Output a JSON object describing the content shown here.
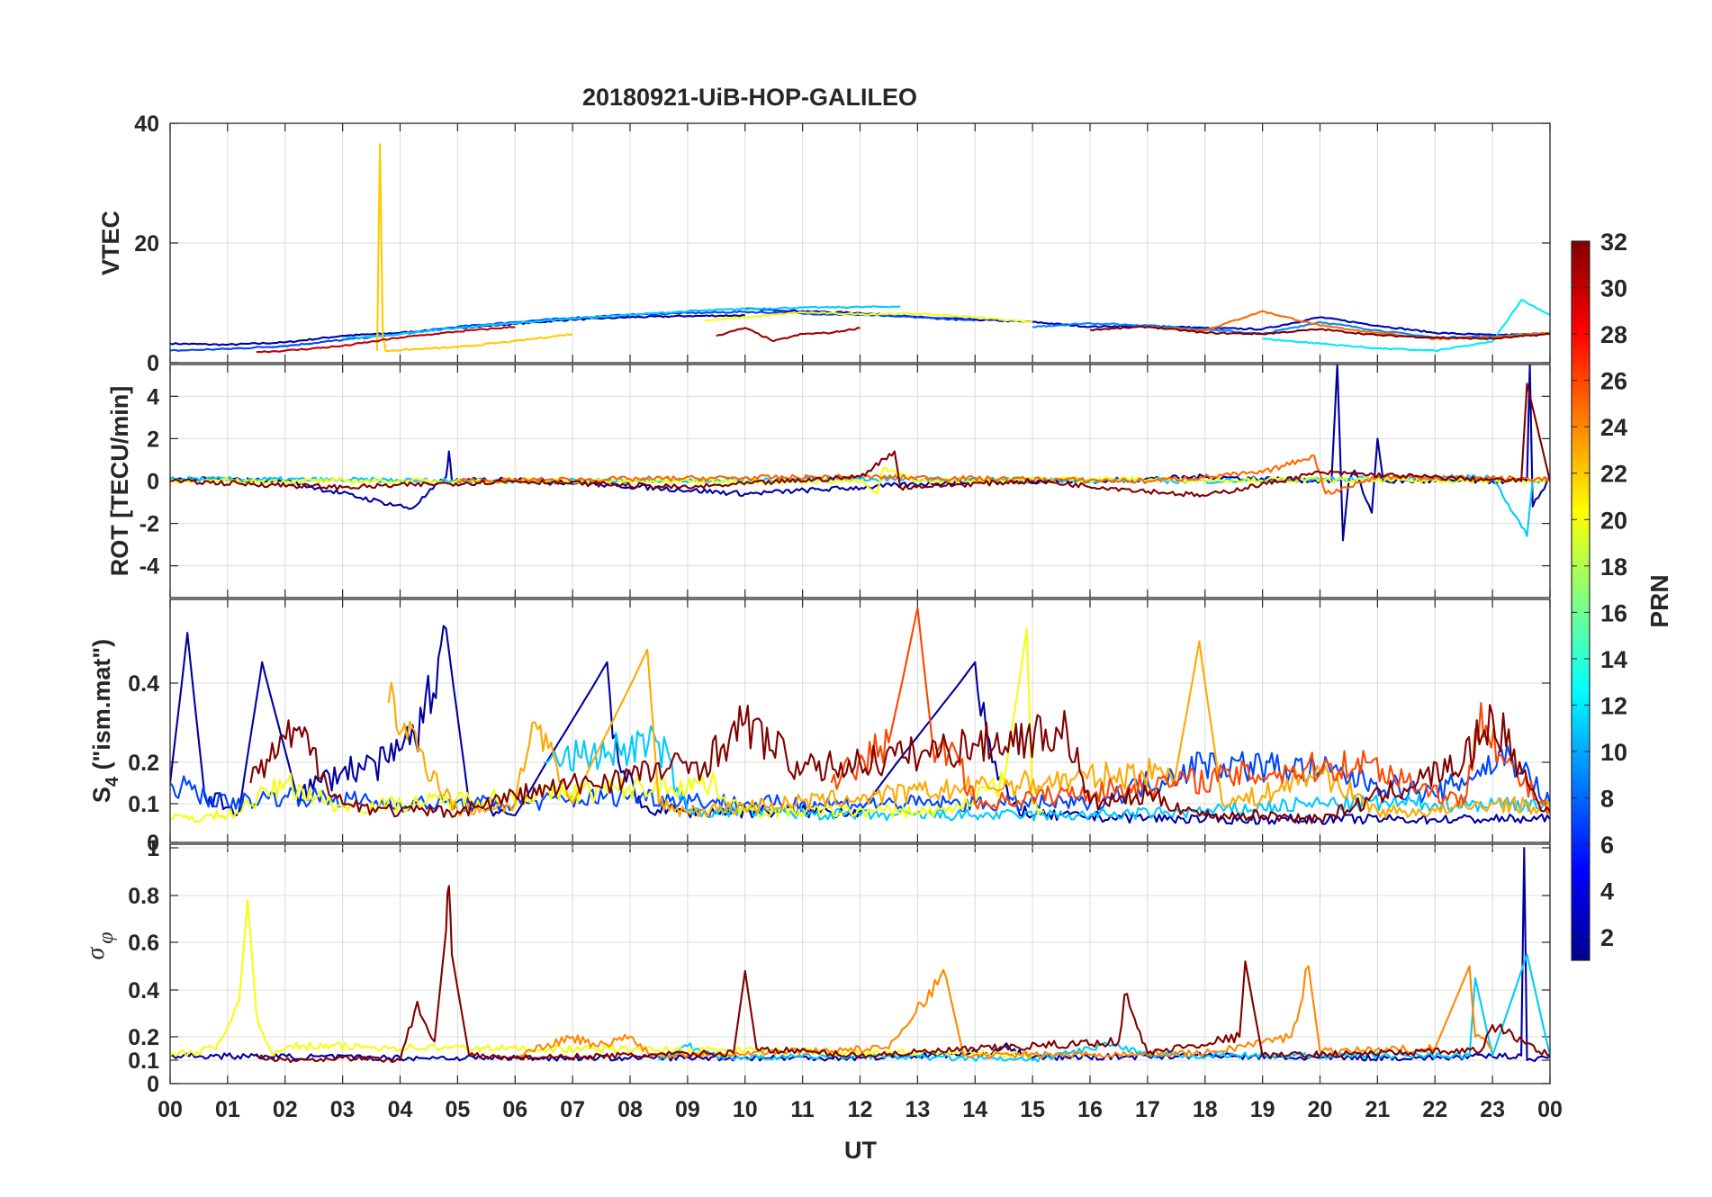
{
  "chart_data": {
    "type": "line",
    "title": "20180921-UiB-HOP-GALILEO",
    "xlabel": "UT",
    "x_range": [
      0,
      24
    ],
    "x_tick_labels": [
      "00",
      "01",
      "02",
      "03",
      "04",
      "05",
      "06",
      "07",
      "08",
      "09",
      "10",
      "11",
      "12",
      "13",
      "14",
      "15",
      "16",
      "17",
      "18",
      "19",
      "20",
      "21",
      "22",
      "23",
      "00"
    ],
    "colorbar": {
      "label": "PRN",
      "range": [
        1,
        32
      ],
      "tick_labels": [
        "2",
        "4",
        "6",
        "8",
        "10",
        "12",
        "14",
        "16",
        "18",
        "20",
        "22",
        "24",
        "26",
        "28",
        "30",
        "32"
      ]
    },
    "panels": [
      {
        "id": "vtec",
        "ylabel": "VTEC",
        "ylim": [
          0,
          40
        ],
        "y_ticks": [
          0,
          20,
          40
        ],
        "y_tick_labels": [
          "0",
          "20",
          "40"
        ],
        "series": [
          {
            "prn": 2,
            "x": [
              0,
              1,
              2,
              3,
              4,
              5,
              6,
              7,
              8,
              9,
              10
            ],
            "y": [
              3.2,
              3.0,
              3.4,
              4.5,
              5.0,
              5.8,
              6.5,
              7.2,
              7.6,
              7.8,
              7.9
            ]
          },
          {
            "prn": 3,
            "x": [
              10,
              11,
              12,
              13,
              14,
              15,
              16,
              17,
              18,
              19,
              20,
              21,
              22,
              23,
              24
            ],
            "y": [
              9.0,
              8.6,
              8.3,
              7.6,
              7.2,
              6.8,
              6.0,
              6.2,
              5.8,
              5.6,
              7.6,
              6.2,
              5.0,
              4.6,
              4.8
            ]
          },
          {
            "prn": 7,
            "x": [
              0,
              1,
              2,
              3,
              4,
              5,
              6,
              7,
              8,
              9,
              10,
              11,
              12,
              13,
              14
            ],
            "y": [
              2.0,
              2.3,
              2.8,
              3.8,
              4.8,
              6.0,
              6.8,
              7.5,
              8.0,
              8.3,
              8.5,
              8.2,
              8.0,
              7.6,
              7.0
            ]
          },
          {
            "prn": 9,
            "x": [
              15,
              16,
              17,
              18,
              19,
              20,
              21,
              22,
              23,
              24
            ],
            "y": [
              6.0,
              6.6,
              6.2,
              5.6,
              4.8,
              6.8,
              5.4,
              4.2,
              4.4,
              5.0
            ]
          },
          {
            "prn": 11,
            "x": [
              3,
              4,
              5,
              6,
              7,
              8,
              9,
              10,
              11,
              12,
              12.7
            ],
            "y": [
              4.0,
              4.8,
              5.8,
              6.6,
              7.4,
              8.0,
              8.6,
              9.0,
              9.2,
              9.3,
              9.4
            ]
          },
          {
            "prn": 12,
            "x": [
              19,
              20,
              21,
              22,
              23,
              23.5,
              24
            ],
            "y": [
              4.0,
              3.2,
              2.4,
              2.0,
              3.5,
              10.5,
              8.0
            ]
          },
          {
            "prn": 20,
            "x": [
              9.3,
              10,
              11,
              12,
              13,
              14,
              15
            ],
            "y": [
              7.0,
              7.6,
              8.4,
              8.1,
              8.2,
              7.6,
              6.8
            ]
          },
          {
            "prn": 22,
            "x": [
              3.6,
              3.65,
              3.7,
              3.75,
              5,
              6,
              7
            ],
            "y": [
              2.0,
              36.5,
              4.5,
              2.0,
              2.6,
              3.6,
              4.8
            ]
          },
          {
            "prn": 25,
            "x": [
              17,
              18,
              19,
              20,
              21,
              22,
              23,
              24
            ],
            "y": [
              6.0,
              5.4,
              8.6,
              6.2,
              5.0,
              4.0,
              4.2,
              5.0
            ]
          },
          {
            "prn": 30,
            "x": [
              1.5,
              2,
              3,
              4,
              5,
              6
            ],
            "y": [
              1.8,
              2.0,
              2.8,
              4.2,
              5.2,
              6.0
            ]
          },
          {
            "prn": 31,
            "x": [
              9.5,
              10,
              10.5,
              11,
              11.5,
              12
            ],
            "y": [
              4.5,
              5.8,
              3.6,
              4.8,
              5.0,
              5.8
            ]
          },
          {
            "prn": 32,
            "x": [
              16,
              17,
              18,
              19,
              20,
              21,
              22,
              23,
              24
            ],
            "y": [
              5.5,
              6.0,
              5.0,
              4.8,
              5.6,
              4.6,
              4.2,
              4.0,
              4.8
            ]
          }
        ]
      },
      {
        "id": "rot",
        "ylabel": "ROT [TECU/min]",
        "ylim": [
          -5.5,
          5.5
        ],
        "y_ticks": [
          -4,
          -2,
          0,
          2,
          4
        ],
        "y_tick_labels": [
          "-4",
          "-2",
          "0",
          "2",
          "4"
        ],
        "series": [
          {
            "prn": 2,
            "x": [
              0,
              2,
              4.2,
              4.8,
              4.85,
              4.9,
              6,
              10,
              14,
              16,
              18,
              20.2,
              20.3,
              20.4,
              20.5,
              20.6,
              20.9,
              21,
              21.1,
              23.6,
              23.65,
              23.7,
              24
            ],
            "y": [
              0.1,
              0.0,
              -1.3,
              0.2,
              1.4,
              0.0,
              0.1,
              -0.6,
              0.0,
              0.0,
              0.2,
              0.0,
              5.5,
              -2.8,
              0.0,
              0.5,
              -1.5,
              2.0,
              0.0,
              0.0,
              5.5,
              -1.2,
              0.2
            ]
          },
          {
            "prn": 11,
            "x": [
              0,
              6,
              12,
              18,
              23,
              23.6,
              23.7,
              24
            ],
            "y": [
              0.1,
              0.0,
              0.1,
              0.0,
              0.2,
              -2.6,
              0.0,
              0.1
            ]
          },
          {
            "prn": 20,
            "x": [
              0,
              12,
              12.3,
              12.4,
              13,
              15,
              24
            ],
            "y": [
              0.0,
              0.0,
              -0.6,
              0.6,
              0.0,
              0.1,
              0.0
            ]
          },
          {
            "prn": 25,
            "x": [
              5,
              8,
              12,
              17,
              19,
              19.9,
              20.1,
              21,
              24
            ],
            "y": [
              0.0,
              0.1,
              0.2,
              0.0,
              0.4,
              1.2,
              -0.6,
              0.2,
              0.1
            ]
          },
          {
            "prn": 32,
            "x": [
              0,
              3,
              6,
              9,
              12,
              12.6,
              12.7,
              15,
              18,
              20,
              23.5,
              23.6,
              24
            ],
            "y": [
              0.0,
              -0.3,
              0.0,
              -0.3,
              0.2,
              1.4,
              -0.3,
              0.0,
              -0.7,
              0.4,
              0.0,
              4.6,
              0.0
            ]
          }
        ]
      },
      {
        "id": "s4",
        "ylabel": "S4 (\"ism.mat\")",
        "ylabel_main": "S",
        "ylabel_sub": "4",
        "ylabel_rest": " (\"ism.mat\")",
        "y_ticks": [
          0,
          0.1,
          0.2,
          0.4
        ],
        "y_tick_labels": [
          "0",
          "0.1",
          "0.2",
          "0.4"
        ],
        "series": [
          {
            "prn": 2,
            "x": [
              0,
              0.3,
              0.6,
              1.2,
              1.6,
              2.2,
              3.0,
              3.8,
              4.4,
              4.8,
              5.2,
              6.0,
              7.6,
              7.8,
              8.2,
              9.0,
              12,
              14,
              14.3,
              14.6,
              15,
              18,
              20,
              22,
              24
            ],
            "y": [
              0.15,
              0.52,
              0.12,
              0.08,
              0.45,
              0.12,
              0.18,
              0.2,
              0.3,
              0.53,
              0.1,
              0.07,
              0.45,
              0.2,
              0.09,
              0.08,
              0.08,
              0.45,
              0.2,
              0.1,
              0.07,
              0.06,
              0.06,
              0.06,
              0.06
            ]
          },
          {
            "prn": 7,
            "x": [
              0,
              1,
              2,
              4,
              6,
              8,
              10,
              12,
              14,
              16,
              18,
              20,
              22,
              23.3,
              24
            ],
            "y": [
              0.15,
              0.1,
              0.12,
              0.1,
              0.1,
              0.12,
              0.1,
              0.1,
              0.1,
              0.1,
              0.2,
              0.18,
              0.12,
              0.22,
              0.1
            ]
          },
          {
            "prn": 11,
            "x": [
              6.5,
              8.5,
              9,
              10,
              12,
              14,
              16,
              18,
              20,
              22,
              24
            ],
            "y": [
              0.2,
              0.25,
              0.08,
              0.08,
              0.07,
              0.07,
              0.07,
              0.08,
              0.1,
              0.1,
              0.1
            ]
          },
          {
            "prn": 20,
            "x": [
              0,
              1,
              2,
              3,
              9.4,
              10,
              13.5,
              14.5,
              14.9,
              15,
              15.2
            ],
            "y": [
              0.06,
              0.07,
              0.15,
              0.09,
              0.15,
              0.08,
              0.08,
              0.15,
              0.53,
              0.1,
              0.08
            ]
          },
          {
            "prn": 23,
            "x": [
              3.8,
              5,
              6,
              6.3,
              7,
              8.3,
              8.5,
              9,
              17.5,
              17.9,
              18.3,
              19,
              20,
              21,
              22,
              23,
              24
            ],
            "y": [
              0.35,
              0.08,
              0.1,
              0.3,
              0.1,
              0.48,
              0.1,
              0.08,
              0.18,
              0.5,
              0.1,
              0.12,
              0.18,
              0.08,
              0.08,
              0.1,
              0.09
            ]
          },
          {
            "prn": 26,
            "x": [
              11.5,
              12.5,
              13,
              13.3,
              13.6,
              14,
              20.8,
              22.5,
              22.8,
              23.2,
              24
            ],
            "y": [
              0.15,
              0.25,
              0.58,
              0.2,
              0.25,
              0.1,
              0.2,
              0.1,
              0.35,
              0.2,
              0.08
            ]
          },
          {
            "prn": 32,
            "x": [
              1.4,
              2.2,
              3,
              4,
              5,
              6,
              9.3,
              10,
              11,
              12,
              15.6,
              16,
              17,
              18,
              19,
              20,
              22.5,
              23,
              23.8,
              24
            ],
            "y": [
              0.15,
              0.28,
              0.1,
              0.08,
              0.08,
              0.12,
              0.2,
              0.3,
              0.18,
              0.2,
              0.28,
              0.1,
              0.12,
              0.07,
              0.07,
              0.06,
              0.2,
              0.32,
              0.1,
              0.08
            ]
          }
        ]
      },
      {
        "id": "sigma_phi",
        "ylabel": "σ_φ",
        "ylabel_main": "σ",
        "ylabel_sub": "φ",
        "ylim": [
          0,
          1.0
        ],
        "y_ticks": [
          0,
          0.1,
          0.2,
          0.4,
          0.6,
          0.8,
          1.0
        ],
        "y_tick_labels": [
          "0",
          "0.1",
          "0.2",
          "0.4",
          "0.6",
          "0.8",
          "1"
        ],
        "series": [
          {
            "prn": 2,
            "x": [
              0,
              4,
              8,
              12,
              14.2,
              14.5,
              15,
              18,
              19.5,
              20,
              22,
              23.5,
              23.55,
              23.6,
              24
            ],
            "y": [
              0.12,
              0.11,
              0.11,
              0.11,
              0.13,
              0.16,
              0.11,
              0.12,
              0.11,
              0.11,
              0.11,
              0.12,
              1.0,
              0.1,
              0.12
            ]
          },
          {
            "prn": 11,
            "x": [
              8.5,
              9,
              9.5,
              10,
              12,
              15,
              16,
              16.3,
              17,
              22.6,
              22.7,
              23,
              23.6,
              24
            ],
            "y": [
              0.1,
              0.16,
              0.12,
              0.11,
              0.12,
              0.1,
              0.15,
              0.17,
              0.12,
              0.12,
              0.45,
              0.12,
              0.55,
              0.12
            ]
          },
          {
            "prn": 20,
            "x": [
              0,
              0.8,
              1.2,
              1.35,
              1.5,
              1.8,
              2.1,
              14,
              15
            ],
            "y": [
              0.12,
              0.15,
              0.35,
              0.78,
              0.3,
              0.12,
              0.16,
              0.13,
              0.12
            ]
          },
          {
            "prn": 24,
            "x": [
              6,
              7,
              7.4,
              8,
              8.4,
              12.5,
              13.2,
              13.5,
              13.8,
              18,
              19.5,
              19.8,
              20,
              22,
              22.6,
              22.7,
              23
            ],
            "y": [
              0.12,
              0.2,
              0.16,
              0.2,
              0.12,
              0.15,
              0.4,
              0.45,
              0.12,
              0.13,
              0.2,
              0.5,
              0.14,
              0.15,
              0.5,
              0.2,
              0.15
            ]
          },
          {
            "prn": 32,
            "x": [
              1.5,
              2,
              3,
              4,
              4.3,
              4.6,
              4.8,
              4.85,
              4.9,
              5.2,
              6,
              9.8,
              10,
              10.2,
              12,
              16.5,
              16.6,
              17,
              18.6,
              18.7,
              19,
              22.8,
              23,
              24
            ],
            "y": [
              0.12,
              0.1,
              0.11,
              0.1,
              0.35,
              0.18,
              0.65,
              0.84,
              0.55,
              0.12,
              0.11,
              0.13,
              0.48,
              0.15,
              0.12,
              0.18,
              0.38,
              0.13,
              0.2,
              0.52,
              0.12,
              0.14,
              0.25,
              0.12
            ]
          }
        ]
      }
    ]
  }
}
